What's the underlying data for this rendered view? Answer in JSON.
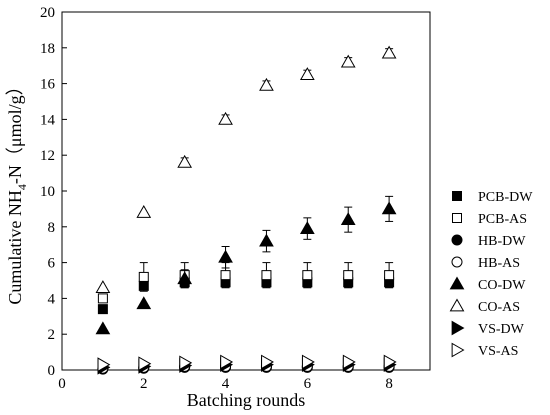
{
  "chart_data": {
    "type": "scatter",
    "title": "",
    "xlabel": "Batching rounds",
    "ylabel": "Cumulative NH4-N（μmol/g）",
    "ylabel_parts": {
      "main": "Cumulative NH",
      "sub": "4",
      "tail": "-N（μmol/g）"
    },
    "xlim": [
      0,
      9
    ],
    "ylim": [
      0,
      20
    ],
    "xticks": [
      0,
      2,
      4,
      6,
      8
    ],
    "yticks": [
      0,
      2,
      4,
      6,
      8,
      10,
      12,
      14,
      16,
      18,
      20
    ],
    "grid": false,
    "legend_position": "right",
    "x": [
      1,
      2,
      3,
      4,
      5,
      6,
      7,
      8
    ],
    "series": [
      {
        "name": "PCB-DW",
        "marker": "square-filled",
        "values": [
          3.4,
          4.7,
          4.9,
          4.9,
          4.9,
          4.9,
          4.9,
          4.9
        ],
        "errors": [
          0,
          0,
          0.3,
          0.3,
          0.3,
          0.3,
          0.3,
          0.3
        ]
      },
      {
        "name": "PCB-AS",
        "marker": "square-open",
        "values": [
          4.0,
          5.2,
          5.3,
          5.3,
          5.3,
          5.3,
          5.3,
          5.3
        ],
        "errors": [
          0,
          0.8,
          0.7,
          0.7,
          0.7,
          0.7,
          0.7,
          0.7
        ]
      },
      {
        "name": "HB-DW",
        "marker": "circle-filled",
        "values": [
          0.05,
          0.1,
          0.15,
          0.15,
          0.15,
          0.15,
          0.15,
          0.15
        ],
        "errors": [
          0,
          0,
          0,
          0,
          0,
          0,
          0,
          0
        ]
      },
      {
        "name": "HB-AS",
        "marker": "circle-open",
        "values": [
          0.1,
          0.15,
          0.2,
          0.2,
          0.2,
          0.2,
          0.2,
          0.2
        ],
        "errors": [
          0,
          0,
          0,
          0,
          0,
          0,
          0,
          0
        ]
      },
      {
        "name": "CO-DW",
        "marker": "triangle-up-filled",
        "values": [
          2.3,
          3.7,
          5.1,
          6.3,
          7.2,
          7.9,
          8.4,
          9.0
        ],
        "errors": [
          0,
          0,
          0.5,
          0.6,
          0.6,
          0.6,
          0.7,
          0.7
        ]
      },
      {
        "name": "CO-AS",
        "marker": "triangle-up-open",
        "values": [
          4.6,
          8.8,
          11.6,
          14.0,
          15.9,
          16.5,
          17.2,
          17.7
        ],
        "errors": [
          0,
          0,
          0.25,
          0.25,
          0.25,
          0.25,
          0.25,
          0.25
        ]
      },
      {
        "name": "VS-DW",
        "marker": "triangle-right-filled",
        "values": [
          0.15,
          0.2,
          0.25,
          0.3,
          0.3,
          0.3,
          0.3,
          0.3
        ],
        "errors": [
          0,
          0,
          0,
          0,
          0,
          0,
          0,
          0
        ]
      },
      {
        "name": "VS-AS",
        "marker": "triangle-right-open",
        "values": [
          0.3,
          0.35,
          0.4,
          0.45,
          0.45,
          0.45,
          0.45,
          0.45
        ],
        "errors": [
          0,
          0,
          0,
          0,
          0,
          0,
          0,
          0
        ]
      }
    ]
  }
}
